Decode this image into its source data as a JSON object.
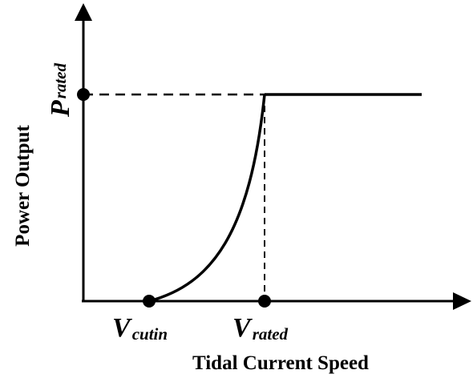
{
  "axes": {
    "x_label": "Tidal Current Speed",
    "y_label": "Power Output"
  },
  "points": [
    {
      "symbol": "P",
      "subscript": "rated"
    },
    {
      "symbol": "V",
      "subscript": "cutin"
    },
    {
      "symbol": "V",
      "subscript": "rated"
    }
  ]
}
